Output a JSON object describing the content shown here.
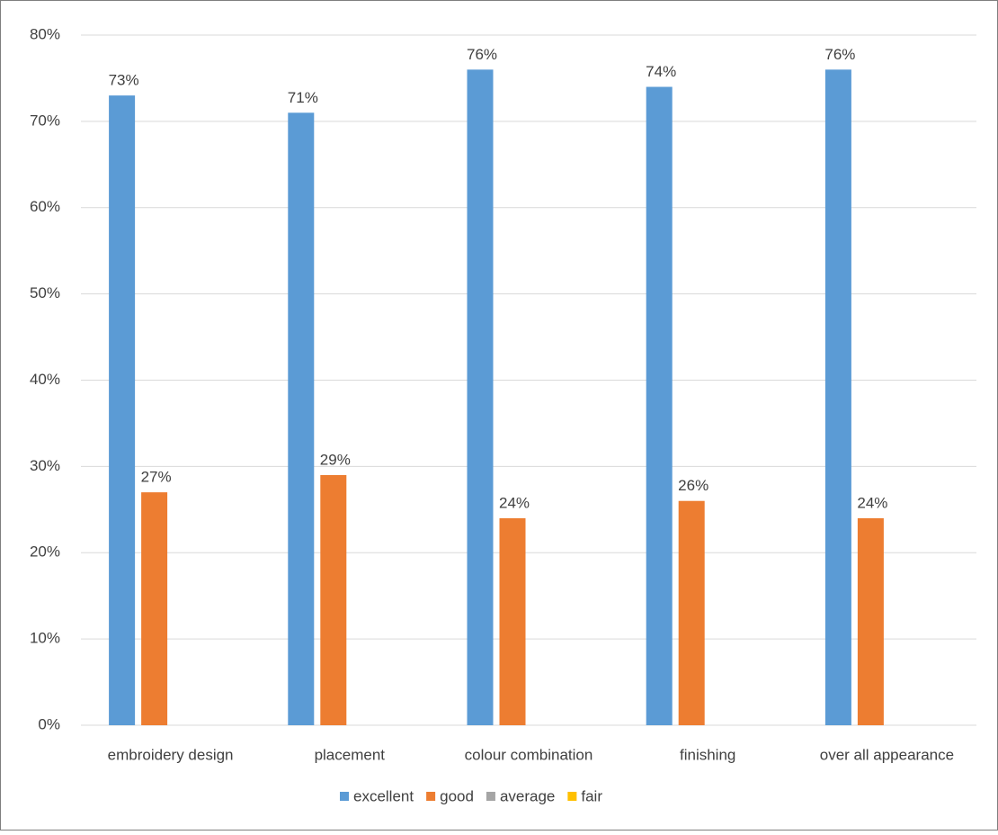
{
  "chart_data": {
    "type": "bar",
    "categories": [
      "embroidery design",
      "placement",
      "colour combination",
      "finishing",
      "over all appearance"
    ],
    "series": [
      {
        "name": "excellent",
        "color": "#5b9bd5",
        "values": [
          73,
          71,
          76,
          74,
          76
        ],
        "value_labels": [
          "73%",
          "71%",
          "76%",
          "74%",
          "76%"
        ]
      },
      {
        "name": "good",
        "color": "#ed7d31",
        "values": [
          27,
          29,
          24,
          26,
          24
        ],
        "value_labels": [
          "27%",
          "29%",
          "24%",
          "26%",
          "24%"
        ]
      },
      {
        "name": "average",
        "color": "#a5a5a5",
        "values": [
          null,
          null,
          null,
          null,
          null
        ]
      },
      {
        "name": "fair",
        "color": "#ffc000",
        "values": [
          null,
          null,
          null,
          null,
          null
        ]
      }
    ],
    "ylim": [
      0,
      80
    ],
    "yticks": [
      {
        "value": 0,
        "label": "0%"
      },
      {
        "value": 10,
        "label": "10%"
      },
      {
        "value": 20,
        "label": "20%"
      },
      {
        "value": 30,
        "label": "30%"
      },
      {
        "value": 40,
        "label": "40%"
      },
      {
        "value": 50,
        "label": "50%"
      },
      {
        "value": 60,
        "label": "60%"
      },
      {
        "value": 70,
        "label": "70%"
      },
      {
        "value": 80,
        "label": "80%"
      }
    ],
    "grid": true,
    "legend": "bottom"
  }
}
